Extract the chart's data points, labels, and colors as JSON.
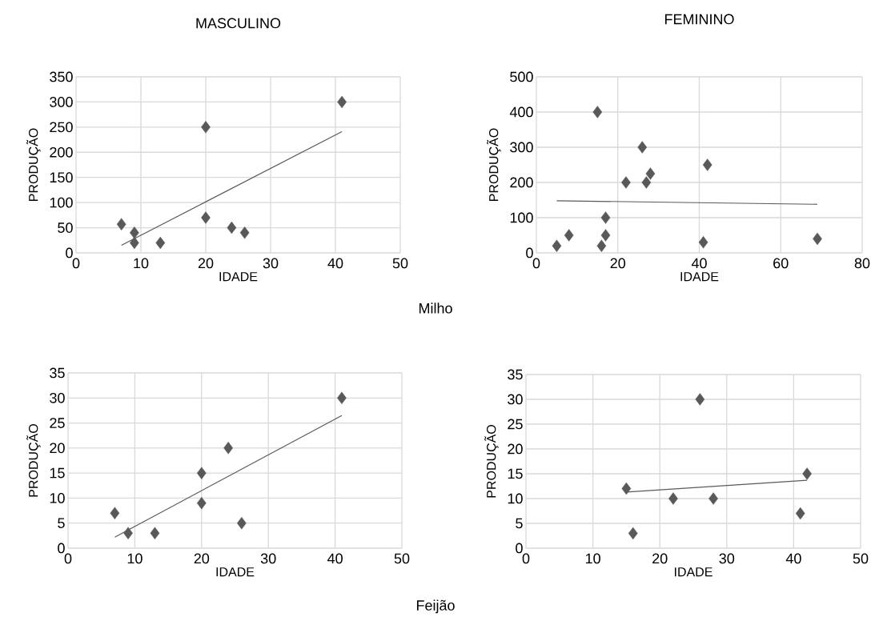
{
  "chart_data": [
    {
      "type": "scatter",
      "title": "MASCULINO",
      "xlabel": "IDADE",
      "ylabel": "PRODUÇÃO",
      "annotations": [
        "Milho"
      ],
      "xlim": [
        0,
        50
      ],
      "xticks": [
        0,
        10,
        20,
        30,
        40,
        50
      ],
      "ylim": [
        0,
        350
      ],
      "yticks": [
        0,
        50,
        100,
        150,
        200,
        250,
        300,
        350
      ],
      "grid": true,
      "series": [
        {
          "marker": "diamond",
          "color": "#595959",
          "x": [
            7,
            9,
            9,
            13,
            20,
            20,
            24,
            26,
            41
          ],
          "values": [
            57,
            40,
            20,
            20,
            250,
            70,
            50,
            40,
            300
          ]
        },
        {
          "type": "line",
          "color": "#595959",
          "x": [
            7,
            41
          ],
          "values": [
            15,
            241
          ]
        }
      ]
    },
    {
      "type": "scatter",
      "title": "FEMININO",
      "xlabel": "IDADE",
      "ylabel": "PRODUÇÃO",
      "xlim": [
        0,
        80
      ],
      "xticks": [
        0,
        20,
        40,
        60,
        80
      ],
      "ylim": [
        0,
        500
      ],
      "yticks": [
        0,
        100,
        200,
        300,
        400,
        500
      ],
      "grid": true,
      "series": [
        {
          "marker": "diamond",
          "color": "#595959",
          "x": [
            5,
            8,
            15,
            16,
            17,
            17,
            22,
            26,
            27,
            28,
            41,
            42,
            69
          ],
          "values": [
            20,
            50,
            400,
            20,
            100,
            50,
            200,
            300,
            200,
            225,
            30,
            250,
            40
          ]
        },
        {
          "type": "line",
          "color": "#595959",
          "x": [
            5,
            69
          ],
          "values": [
            148,
            138
          ]
        }
      ]
    },
    {
      "type": "scatter",
      "xlabel": "IDADE",
      "ylabel": "PRODUÇÃO",
      "annotations": [
        "Feijão"
      ],
      "xlim": [
        0,
        50
      ],
      "xticks": [
        0,
        10,
        20,
        30,
        40,
        50
      ],
      "ylim": [
        0,
        35
      ],
      "yticks": [
        0,
        5,
        10,
        15,
        20,
        25,
        30,
        35
      ],
      "grid": true,
      "series": [
        {
          "marker": "diamond",
          "color": "#595959",
          "x": [
            7,
            9,
            13,
            20,
            20,
            24,
            26,
            41
          ],
          "values": [
            7,
            3,
            3,
            15,
            9,
            20,
            5,
            30
          ]
        },
        {
          "type": "line",
          "color": "#595959",
          "x": [
            7,
            41
          ],
          "values": [
            2.2,
            26.5
          ]
        }
      ]
    },
    {
      "type": "scatter",
      "xlabel": "IDADE",
      "ylabel": "PRODUÇÃO",
      "xlim": [
        0,
        50
      ],
      "xticks": [
        0,
        10,
        20,
        30,
        40,
        50
      ],
      "ylim": [
        0,
        35
      ],
      "yticks": [
        0,
        5,
        10,
        15,
        20,
        25,
        30,
        35
      ],
      "grid": true,
      "series": [
        {
          "marker": "diamond",
          "color": "#595959",
          "x": [
            15,
            16,
            22,
            26,
            28,
            41,
            42
          ],
          "values": [
            12,
            3,
            10,
            30,
            10,
            7,
            15
          ]
        },
        {
          "type": "line",
          "color": "#595959",
          "x": [
            15,
            42
          ],
          "values": [
            11.3,
            13.7
          ]
        }
      ]
    }
  ]
}
